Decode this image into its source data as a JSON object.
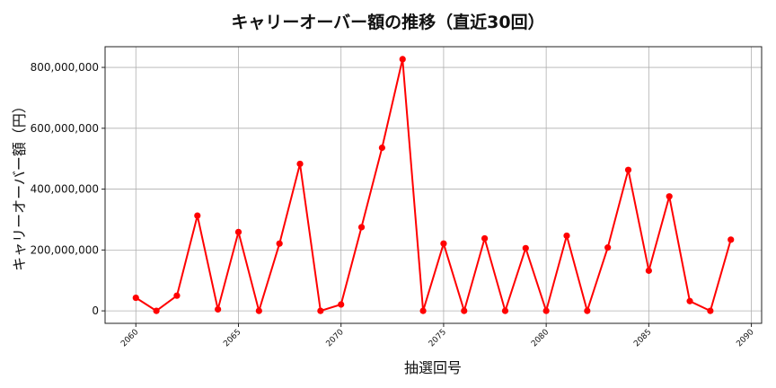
{
  "chart_data": {
    "type": "line",
    "title": "キャリーオーバー額の推移（直近30回）",
    "xlabel": "抽選回号",
    "ylabel": "キャリーオーバー額（円）",
    "x": [
      2060,
      2061,
      2062,
      2063,
      2064,
      2065,
      2066,
      2067,
      2068,
      2069,
      2070,
      2071,
      2072,
      2073,
      2074,
      2075,
      2076,
      2077,
      2078,
      2079,
      2080,
      2081,
      2082,
      2083,
      2084,
      2085,
      2086,
      2087,
      2088,
      2089
    ],
    "series": [
      {
        "name": "キャリーオーバー額",
        "color": "#ff0000",
        "marker": "circle",
        "values": [
          43000000,
          0,
          50000000,
          313000000,
          5000000,
          259000000,
          0,
          221000000,
          483000000,
          0,
          21000000,
          275000000,
          536000000,
          827000000,
          0,
          221000000,
          0,
          238000000,
          0,
          206000000,
          0,
          247000000,
          0,
          208000000,
          463000000,
          132000000,
          376000000,
          32000000,
          0,
          234000000
        ]
      }
    ],
    "xticks": [
      2060,
      2065,
      2070,
      2075,
      2080,
      2085,
      2090
    ],
    "xtick_labels": [
      "2060",
      "2065",
      "2070",
      "2075",
      "2080",
      "2085",
      "2090"
    ],
    "yticks": [
      0,
      200000000,
      400000000,
      600000000,
      800000000
    ],
    "ytick_labels": [
      "0",
      "200,000,000",
      "400,000,000",
      "600,000,000",
      "800,000,000"
    ],
    "xlim": [
      2058.5,
      2090.5
    ],
    "ylim": [
      -41000000,
      868000000
    ],
    "grid": true,
    "legend": null
  },
  "colors": {
    "line": "#ff0000",
    "grid": "#b0b0b0",
    "axes": "#222222",
    "text": "#111111"
  }
}
